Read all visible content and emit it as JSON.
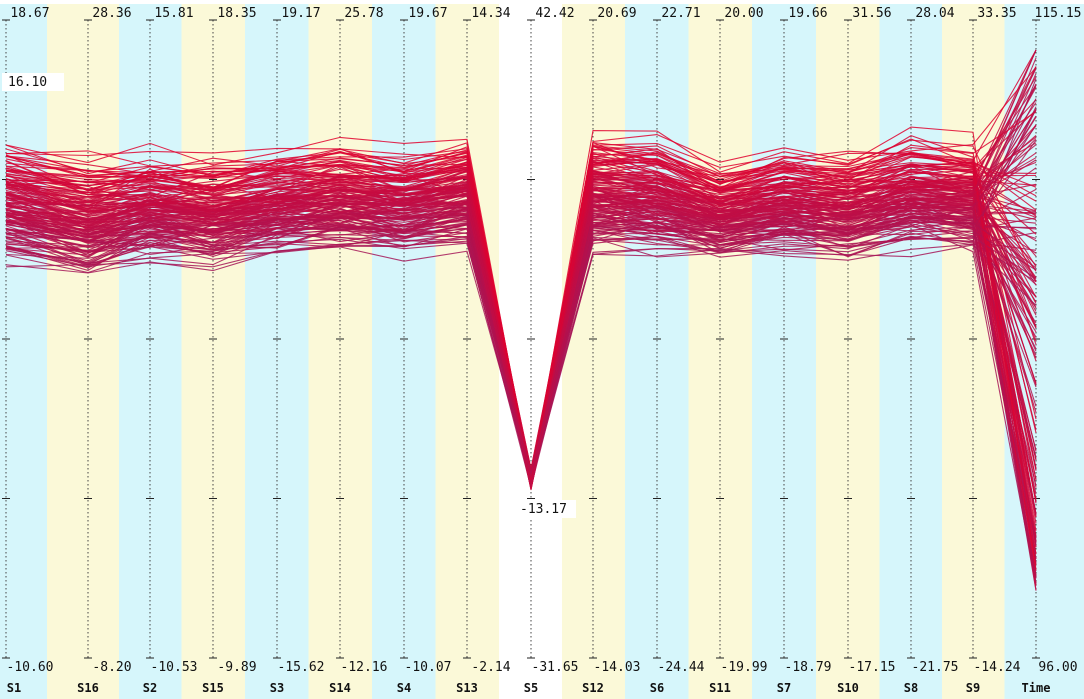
{
  "chart_data": {
    "type": "parallel-coordinates",
    "axes": [
      {
        "name": "S1",
        "max": "18.67",
        "min": "-10.60"
      },
      {
        "name": "S16",
        "max": "28.36",
        "min": "-8.20"
      },
      {
        "name": "S2",
        "max": "15.81",
        "min": "-10.53"
      },
      {
        "name": "S15",
        "max": "18.35",
        "min": "-9.89"
      },
      {
        "name": "S3",
        "max": "19.17",
        "min": "-15.62"
      },
      {
        "name": "S14",
        "max": "25.78",
        "min": "-12.16"
      },
      {
        "name": "S4",
        "max": "19.67",
        "min": "-10.07"
      },
      {
        "name": "S13",
        "max": "14.34",
        "min": "-2.14"
      },
      {
        "name": "S5",
        "max": "42.42",
        "min": "-31.65"
      },
      {
        "name": "S12",
        "max": "20.69",
        "min": "-14.03"
      },
      {
        "name": "S6",
        "max": "22.71",
        "min": "-24.44"
      },
      {
        "name": "S11",
        "max": "20.00",
        "min": "-19.99"
      },
      {
        "name": "S7",
        "max": "19.66",
        "min": "-18.79"
      },
      {
        "name": "S10",
        "max": "31.56",
        "min": "-17.15"
      },
      {
        "name": "S8",
        "max": "28.04",
        "min": "-21.75"
      },
      {
        "name": "S9",
        "max": "33.35",
        "min": "-14.24"
      },
      {
        "name": "Time",
        "max": "115.15",
        "min": "96.00"
      }
    ],
    "annotations": [
      {
        "axis": "S1",
        "label": "16.10"
      },
      {
        "axis": "S5",
        "label": "-13.17"
      }
    ],
    "colors": {
      "band_a": "#d6f6fb",
      "band_b": "#fbf9d8",
      "band_highlight": "#ffffff",
      "line_low": "#9c1a5e",
      "line_high": "#e5002b"
    },
    "highlighted_axis": "S5"
  }
}
